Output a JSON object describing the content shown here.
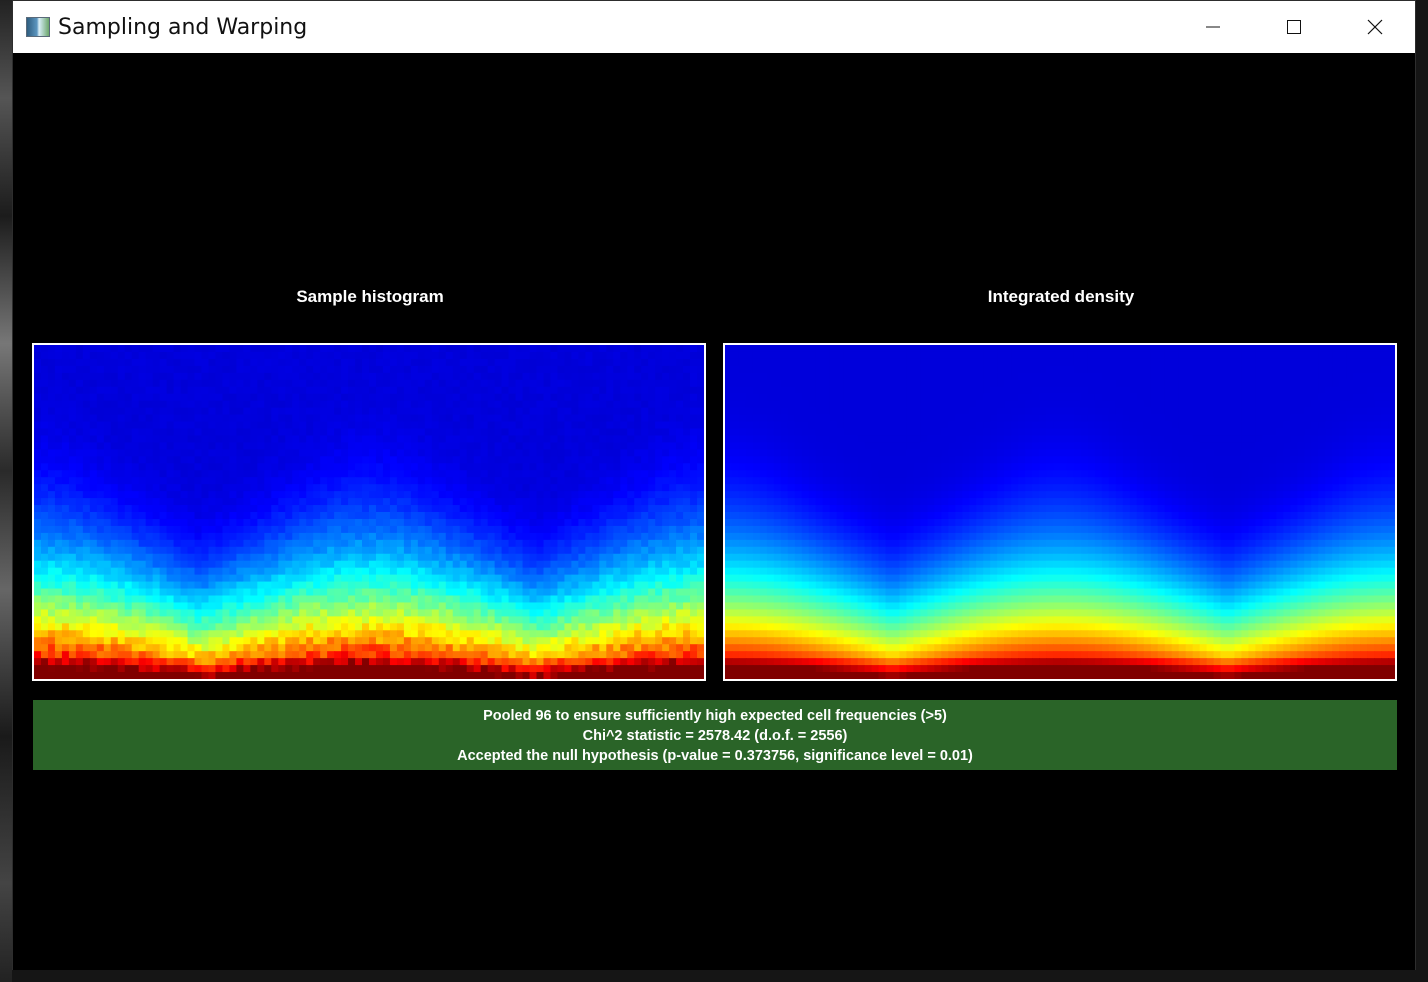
{
  "window": {
    "title": "Sampling and Warping",
    "app_icon": "app-icon",
    "controls": {
      "minimize_icon": "minimize-icon",
      "maximize_icon": "maximize-icon",
      "close_icon": "close-icon"
    }
  },
  "panels": {
    "left_title": "Sample histogram",
    "right_title": "Integrated density"
  },
  "status": {
    "background_color": "#2a6428",
    "line1": "Pooled 96 to ensure sufficiently high expected cell frequencies (>5)",
    "line2": "Chi^2 statistic = 2578.42 (d.o.f. = 2556)",
    "line3": "Accepted the null hypothesis (p-value = 0.373756, significance level = 0.01)"
  },
  "chart_data": [
    {
      "type": "heatmap",
      "title": "Sample histogram",
      "colormap": "jet",
      "peaks_x": [
        0.0,
        0.5,
        1.0
      ],
      "noisy": true
    },
    {
      "type": "heatmap",
      "title": "Integrated density",
      "colormap": "jet",
      "peaks_x": [
        0.0,
        0.5,
        1.0
      ],
      "noisy": false
    }
  ]
}
